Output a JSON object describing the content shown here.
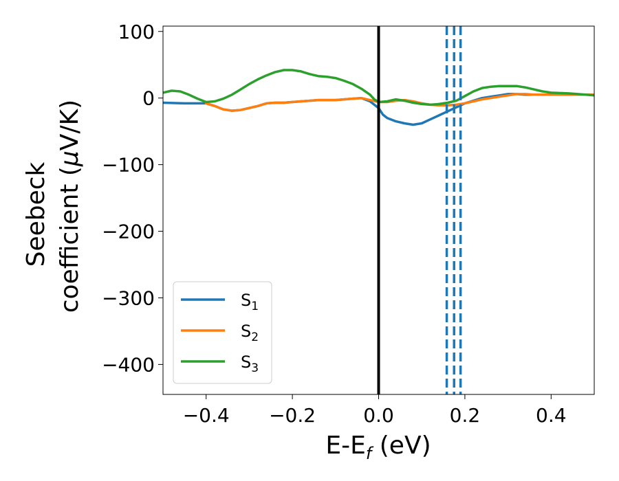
{
  "chart_data": {
    "type": "line",
    "xlabel": "E-E",
    "xlabel_sub": "f",
    "xlabel_unit": " (eV)",
    "ylabel_line1": "Seebeck",
    "ylabel_line2": "coefficient  (",
    "ylabel_mu": "μ",
    "ylabel_unit": "V/K)",
    "xlim": [
      -0.5,
      0.5
    ],
    "ylim": [
      -445,
      108
    ],
    "xticks": [
      -0.4,
      -0.2,
      0.0,
      0.2,
      0.4
    ],
    "xtick_labels": [
      "−0.4",
      "−0.2",
      "0.0",
      "0.2",
      "0.4"
    ],
    "yticks": [
      100,
      0,
      -100,
      -200,
      -300,
      -400
    ],
    "ytick_labels": [
      "100",
      "0",
      "−100",
      "−200",
      "−300",
      "−400"
    ],
    "grid": false,
    "legend": "lower-left",
    "series": [
      {
        "name": "S",
        "sub": "1",
        "color": "#1f77b4",
        "x": [
          -0.5,
          -0.45,
          -0.4,
          -0.38,
          -0.36,
          -0.34,
          -0.32,
          -0.3,
          -0.28,
          -0.26,
          -0.24,
          -0.22,
          -0.2,
          -0.18,
          -0.16,
          -0.14,
          -0.12,
          -0.1,
          -0.08,
          -0.06,
          -0.04,
          -0.02,
          0.0,
          0.01,
          0.02,
          0.04,
          0.06,
          0.08,
          0.1,
          0.12,
          0.14,
          0.16,
          0.18,
          0.2,
          0.22,
          0.24,
          0.26,
          0.28,
          0.3,
          0.32,
          0.34,
          0.36,
          0.4,
          0.45,
          0.5
        ],
        "y": [
          -7,
          -8,
          -8,
          -12,
          -17,
          -19,
          -18,
          -15,
          -12,
          -8,
          -7,
          -7,
          -6,
          -5,
          -4,
          -3,
          -3,
          -3,
          -2,
          -1,
          0,
          -5,
          -15,
          -25,
          -30,
          -35,
          -38,
          -40,
          -38,
          -32,
          -26,
          -20,
          -14,
          -8,
          -4,
          0,
          2,
          4,
          6,
          6,
          5,
          5,
          5,
          5,
          5
        ]
      },
      {
        "name": "S",
        "sub": "2",
        "color": "#ff7f0e",
        "x": [
          -0.4,
          -0.38,
          -0.36,
          -0.34,
          -0.32,
          -0.3,
          -0.28,
          -0.26,
          -0.24,
          -0.22,
          -0.2,
          -0.18,
          -0.16,
          -0.14,
          -0.12,
          -0.1,
          -0.08,
          -0.06,
          -0.04,
          -0.02,
          0.0,
          0.02,
          0.04,
          0.06,
          0.08,
          0.1,
          0.12,
          0.14,
          0.16,
          0.18,
          0.2,
          0.22,
          0.24,
          0.26,
          0.28,
          0.3,
          0.32,
          0.34,
          0.36,
          0.4,
          0.45,
          0.5
        ],
        "y": [
          -8,
          -12,
          -17,
          -19,
          -18,
          -15,
          -12,
          -8,
          -7,
          -7,
          -6,
          -5,
          -4,
          -3,
          -3,
          -3,
          -2,
          -1,
          0,
          -3,
          -6,
          -6,
          -4,
          -3,
          -5,
          -8,
          -10,
          -11,
          -11,
          -10,
          -8,
          -5,
          -2,
          0,
          2,
          4,
          6,
          6,
          5,
          5,
          5,
          5
        ]
      },
      {
        "name": "S",
        "sub": "3",
        "color": "#2ca02c",
        "x": [
          -0.5,
          -0.48,
          -0.46,
          -0.44,
          -0.42,
          -0.4,
          -0.38,
          -0.36,
          -0.34,
          -0.32,
          -0.3,
          -0.28,
          -0.26,
          -0.24,
          -0.22,
          -0.2,
          -0.18,
          -0.16,
          -0.14,
          -0.12,
          -0.1,
          -0.08,
          -0.06,
          -0.04,
          -0.02,
          -0.01,
          0.0,
          0.02,
          0.04,
          0.06,
          0.08,
          0.1,
          0.12,
          0.14,
          0.16,
          0.18,
          0.2,
          0.22,
          0.24,
          0.26,
          0.28,
          0.3,
          0.32,
          0.34,
          0.36,
          0.38,
          0.4,
          0.44,
          0.48,
          0.5
        ],
        "y": [
          8,
          11,
          10,
          5,
          -1,
          -6,
          -5,
          -1,
          5,
          13,
          21,
          28,
          34,
          39,
          42,
          42,
          40,
          36,
          33,
          32,
          30,
          26,
          21,
          14,
          5,
          -2,
          -6,
          -5,
          -2,
          -4,
          -7,
          -9,
          -10,
          -9,
          -7,
          -4,
          3,
          10,
          15,
          17,
          18,
          18,
          18,
          16,
          13,
          10,
          8,
          7,
          5,
          4
        ]
      }
    ],
    "vlines": [
      {
        "x": 0.0,
        "color": "#000000",
        "style": "solid"
      },
      {
        "x": 0.158,
        "color": "#1f77b4",
        "style": "dashed"
      },
      {
        "x": 0.175,
        "color": "#1f77b4",
        "style": "dashed"
      },
      {
        "x": 0.19,
        "color": "#1f77b4",
        "style": "dashed"
      }
    ]
  }
}
